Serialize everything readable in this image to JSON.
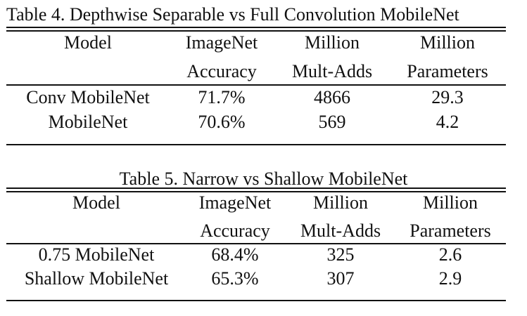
{
  "tables": [
    {
      "caption": "Table 4. Depthwise Separable vs Full Convolution MobileNet",
      "header_row1": [
        "Model",
        "ImageNet",
        "Million",
        "Million"
      ],
      "header_row2": [
        "",
        "Accuracy",
        "Mult-Adds",
        "Parameters"
      ],
      "rows": [
        [
          "Conv MobileNet",
          "71.7%",
          "4866",
          "29.3"
        ],
        [
          "MobileNet",
          "70.6%",
          "569",
          "4.2"
        ]
      ]
    },
    {
      "caption": "Table 5. Narrow vs Shallow MobileNet",
      "header_row1": [
        "Model",
        "ImageNet",
        "Million",
        "Million"
      ],
      "header_row2": [
        "",
        "Accuracy",
        "Mult-Adds",
        "Parameters"
      ],
      "rows": [
        [
          "0.75 MobileNet",
          "68.4%",
          "325",
          "2.6"
        ],
        [
          "Shallow MobileNet",
          "65.3%",
          "307",
          "2.9"
        ]
      ]
    }
  ]
}
